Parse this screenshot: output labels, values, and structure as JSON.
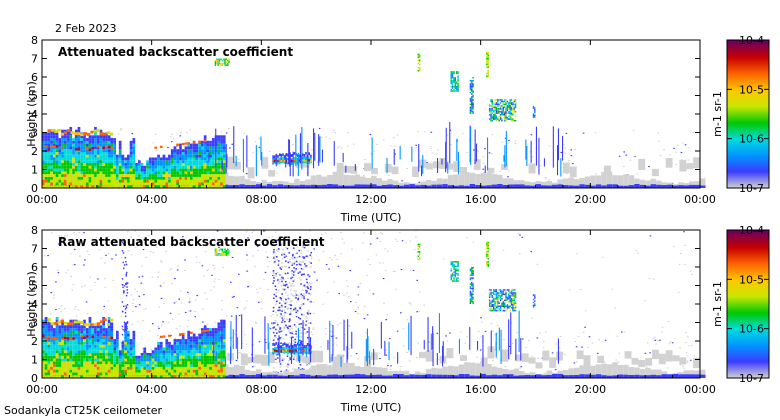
{
  "date": "2 Feb 2023",
  "footer": "Sodankyla CT25K ceilometer",
  "colors": {
    "scale": [
      "#d2d2d2",
      "#3c3cff",
      "#0096ff",
      "#00dcdc",
      "#00c800",
      "#c8e600",
      "#ffc800",
      "#ff6400",
      "#c80000",
      "#640064"
    ]
  },
  "chart_data": [
    {
      "type": "heatmap",
      "title": "Attenuated backscatter coefficient",
      "xlabel": "Time (UTC)",
      "ylabel": "Height (km)",
      "xticks": [
        "00:00",
        "04:00",
        "08:00",
        "12:00",
        "16:00",
        "20:00",
        "00:00"
      ],
      "yticks": [
        "0",
        "1",
        "2",
        "3",
        "4",
        "5",
        "6",
        "7",
        "8"
      ],
      "xlim": [
        0,
        24
      ],
      "ylim": [
        0,
        8
      ],
      "colorbar": {
        "label": "m-1 sr-1",
        "ticks": [
          "10-7",
          "10-6",
          "10-5",
          "10-4"
        ]
      }
    },
    {
      "type": "heatmap",
      "title": "Raw attenuated backscatter coefficient",
      "xlabel": "Time (UTC)",
      "ylabel": "Height (km)",
      "xticks": [
        "00:00",
        "04:00",
        "08:00",
        "12:00",
        "16:00",
        "20:00",
        "00:00"
      ],
      "yticks": [
        "0",
        "1",
        "2",
        "3",
        "4",
        "5",
        "6",
        "7",
        "8"
      ],
      "xlim": [
        0,
        24
      ],
      "ylim": [
        0,
        8
      ],
      "colorbar": {
        "label": "m-1 sr-1",
        "ticks": [
          "10-7",
          "10-6",
          "10-5",
          "10-4"
        ]
      }
    }
  ]
}
